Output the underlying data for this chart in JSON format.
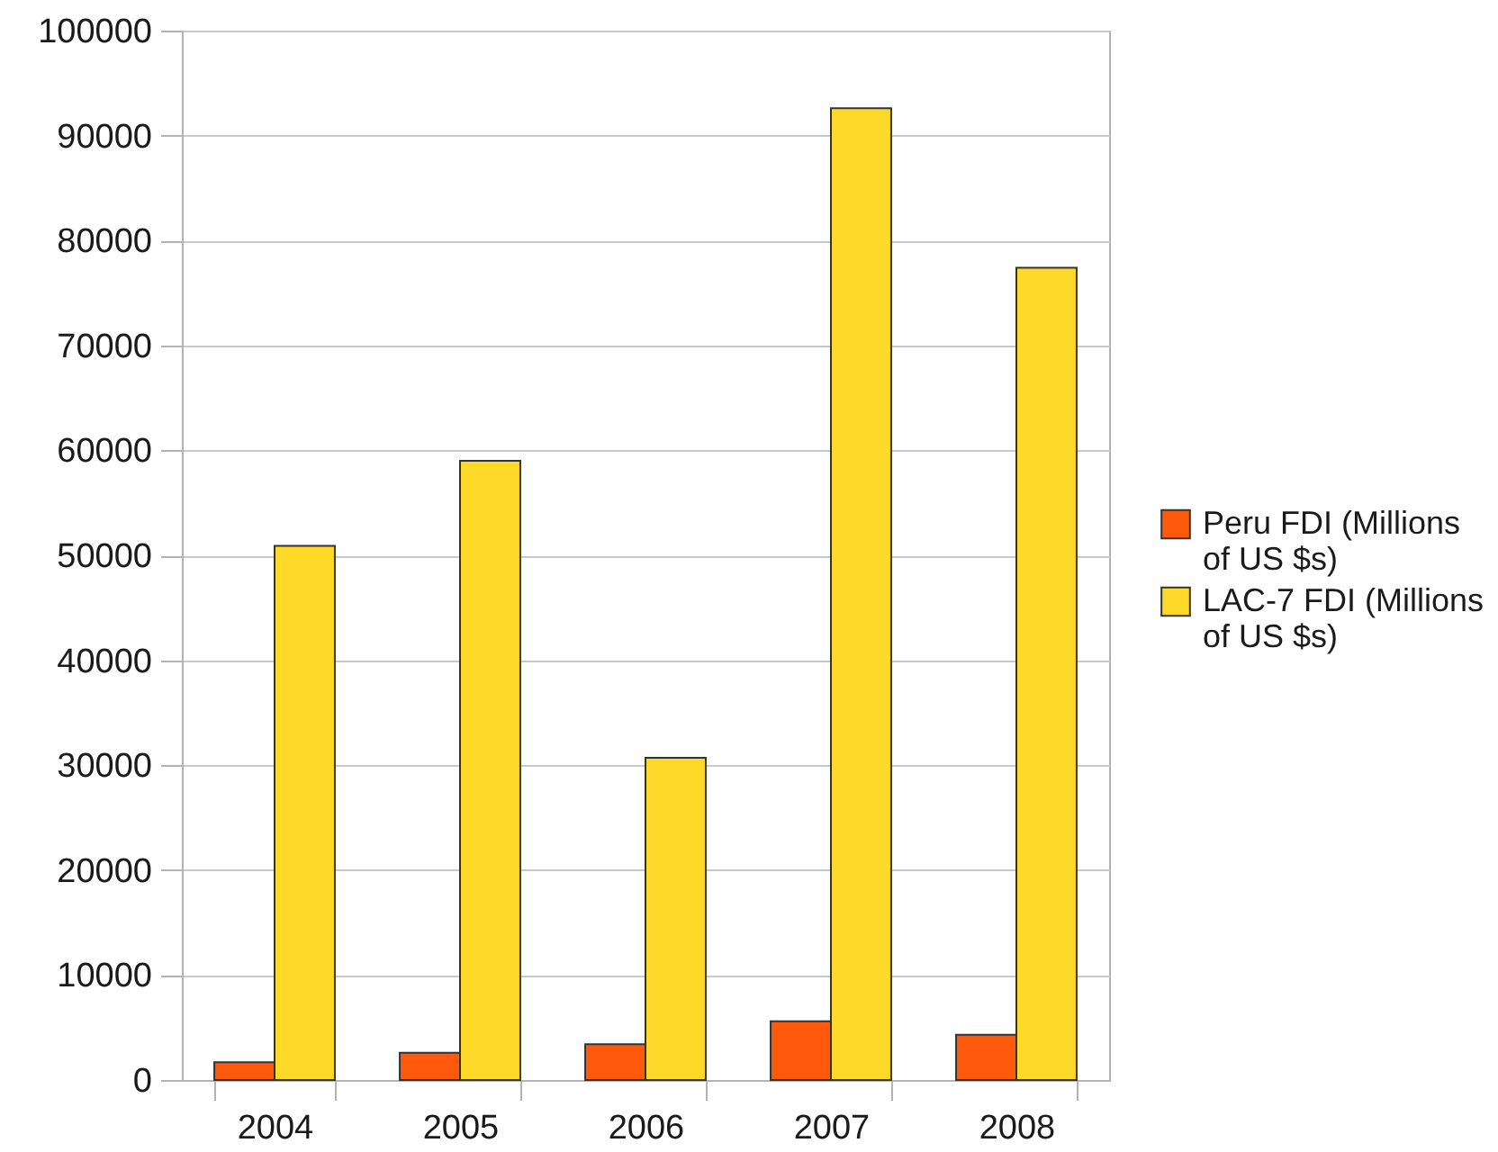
{
  "chart_data": {
    "type": "bar",
    "categories": [
      "2004",
      "2005",
      "2006",
      "2007",
      "2008"
    ],
    "series": [
      {
        "name": "Peru FDI (Millions of US $s)",
        "color": "#ff5a0c",
        "values": [
          1700,
          2600,
          3400,
          5600,
          4300
        ]
      },
      {
        "name": "LAC-7 FDI (Millions of US $s)",
        "color": "#ffd92a",
        "values": [
          50900,
          59000,
          30700,
          92600,
          77400
        ]
      }
    ],
    "ylim": [
      0,
      100000
    ],
    "yticks": [
      0,
      10000,
      20000,
      30000,
      40000,
      50000,
      60000,
      70000,
      80000,
      90000,
      100000
    ],
    "grid": "y",
    "legend": "right"
  }
}
